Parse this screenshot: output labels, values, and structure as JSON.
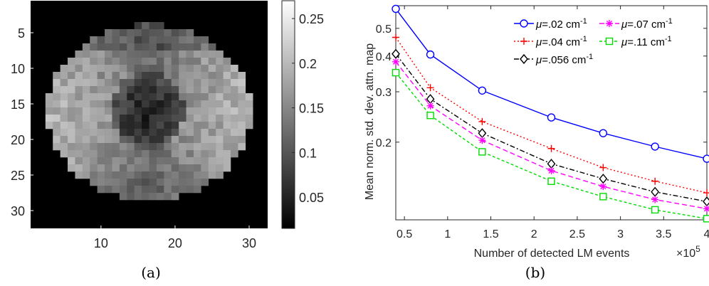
{
  "captions": [
    "(a)",
    "(b)"
  ],
  "chart_data": [
    {
      "type": "heatmap",
      "colormap": "gray",
      "x_ticks": [
        10,
        20,
        30
      ],
      "y_ticks": [
        5,
        10,
        15,
        20,
        25,
        30
      ],
      "xlim": [
        0.5,
        32.5
      ],
      "ylim": [
        0.5,
        32.5
      ],
      "colorbar": {
        "ticks": [
          "0.25",
          "0.2",
          "0.15",
          "0.1",
          "0.05"
        ],
        "tick_values": [
          0.25,
          0.2,
          0.15,
          0.1,
          0.05
        ],
        "range": [
          0.015,
          0.27
        ]
      }
    },
    {
      "type": "line",
      "xlabel": "Number of detected LM events",
      "xlabel_exponent": "×10",
      "xlabel_exponent_power": "5",
      "ylabel": "Mean norm. std. dev. attn. map",
      "y_scale": "log",
      "xlim": [
        0.4,
        4
      ],
      "ylim": [
        0.107,
        0.6
      ],
      "x_ticks": [
        "0.5",
        "1",
        "1.5",
        "2",
        "2.5",
        "3",
        "3.5",
        "4"
      ],
      "x_tick_values": [
        0.5,
        1,
        1.5,
        2,
        2.5,
        3,
        3.5,
        4
      ],
      "y_ticks": [
        "0.2",
        "0.3",
        "0.4",
        "0.5"
      ],
      "y_tick_values": [
        0.2,
        0.3,
        0.4,
        0.5
      ],
      "legend_position": "top-right",
      "x": [
        0.4,
        0.8,
        1.4,
        2.2,
        2.8,
        3.4,
        4.0
      ],
      "series": [
        {
          "label_prefix": "μ",
          "label_value": "=.02 cm",
          "label_exp": "-1",
          "color": "#0000ff",
          "dash": "",
          "marker": "circle",
          "values": [
            0.585,
            0.405,
            0.303,
            0.244,
            0.215,
            0.193,
            0.175
          ]
        },
        {
          "label_prefix": "μ",
          "label_value": "=.04 cm",
          "label_exp": "-1",
          "color": "#ff0000",
          "dash": "2,3",
          "marker": "plus",
          "values": [
            0.465,
            0.31,
            0.236,
            0.19,
            0.163,
            0.146,
            0.133
          ]
        },
        {
          "label_prefix": "μ",
          "label_value": "=.056 cm",
          "label_exp": "-1",
          "color": "#000000",
          "dash": "7,3,2,3",
          "marker": "diamond",
          "values": [
            0.407,
            0.283,
            0.215,
            0.168,
            0.149,
            0.134,
            0.124
          ]
        },
        {
          "label_prefix": "μ",
          "label_value": "=.07 cm",
          "label_exp": "-1",
          "color": "#ff00ff",
          "dash": "7,4",
          "marker": "star",
          "values": [
            0.382,
            0.268,
            0.203,
            0.159,
            0.14,
            0.126,
            0.117
          ]
        },
        {
          "label_prefix": "μ",
          "label_value": "=.11 cm",
          "label_exp": "-1",
          "color": "#00dd00",
          "dash": "4,3",
          "marker": "square",
          "values": [
            0.35,
            0.248,
            0.185,
            0.146,
            0.129,
            0.116,
            0.108
          ]
        }
      ]
    }
  ]
}
